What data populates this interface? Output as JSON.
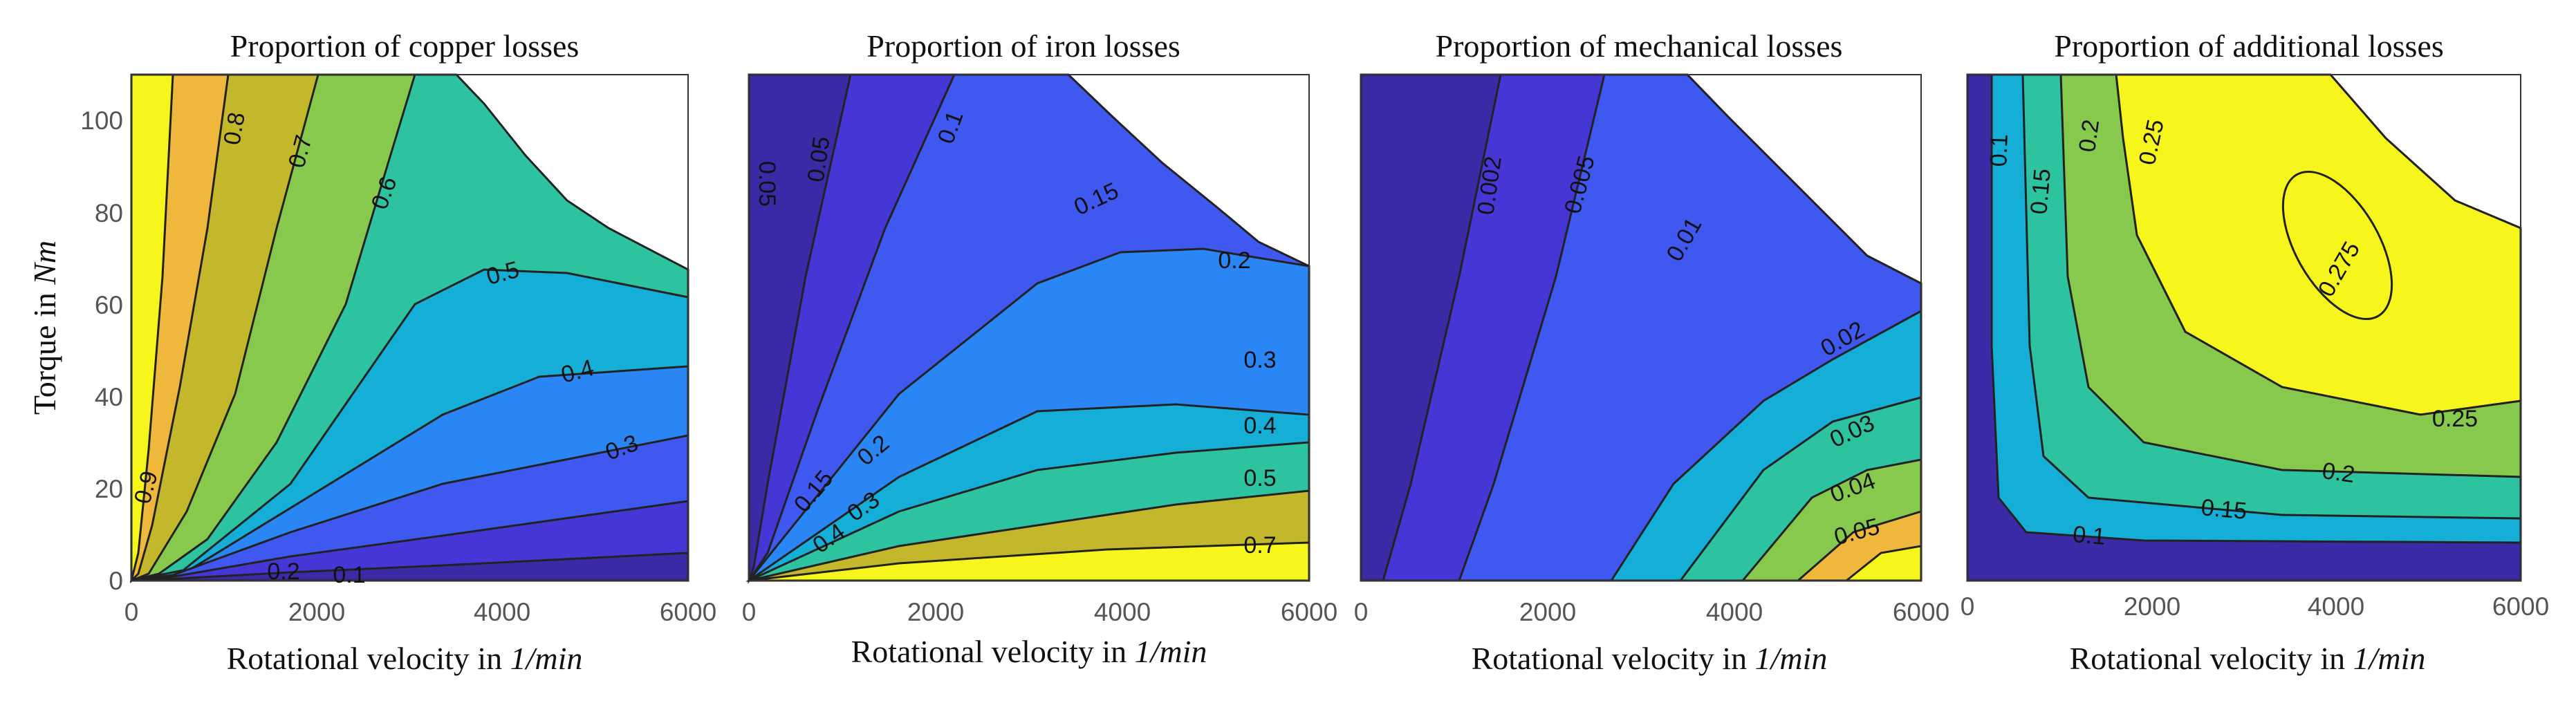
{
  "colors": {
    "dark": "#3b2aa6",
    "indigo": "#4537d6",
    "blue": "#3f58f0",
    "sky": "#2b86f5",
    "cyan": "#14aed6",
    "teal": "#2ec3a0",
    "green": "#86c94c",
    "olive": "#c3b72b",
    "gold": "#efb83c",
    "yellow": "#f6f61d",
    "line": "#222222"
  },
  "chart_data": [
    {
      "type": "contour",
      "title": "Proportion of copper losses",
      "xlabel": "Rotational velocity in ",
      "xlabel_unit": "1/min",
      "ylabel": "Torque in ",
      "ylabel_unit": "Nm",
      "x_ticks": [
        "0",
        "2000",
        "4000",
        "6000"
      ],
      "y_ticks": [
        "0",
        "20",
        "40",
        "60",
        "80",
        "100"
      ],
      "xlim": [
        0,
        6000
      ],
      "ylim": [
        0,
        110
      ],
      "levels": [
        "0.1",
        "0.2",
        "0.3",
        "0.4",
        "0.5",
        "0.6",
        "0.7",
        "0.8",
        "0.9"
      ]
    },
    {
      "type": "contour",
      "title": "Proportion of iron losses",
      "xlabel": "Rotational velocity in ",
      "xlabel_unit": "1/min",
      "x_ticks": [
        "0",
        "2000",
        "4000",
        "6000"
      ],
      "xlim": [
        0,
        6000
      ],
      "ylim": [
        0,
        110
      ],
      "levels": [
        "0.05",
        "0.1",
        "0.15",
        "0.2",
        "0.3",
        "0.4",
        "0.5",
        "0.7"
      ]
    },
    {
      "type": "contour",
      "title": "Proportion of mechanical losses",
      "xlabel": "Rotational velocity in ",
      "xlabel_unit": "1/min",
      "x_ticks": [
        "0",
        "2000",
        "4000",
        "6000"
      ],
      "xlim": [
        0,
        6000
      ],
      "ylim": [
        0,
        110
      ],
      "levels": [
        "0.002",
        "0.005",
        "0.01",
        "0.02",
        "0.03",
        "0.04",
        "0.05"
      ]
    },
    {
      "type": "contour",
      "title": "Proportion of additional losses",
      "xlabel": "Rotational velocity in ",
      "xlabel_unit": "1/min",
      "x_ticks": [
        "0",
        "2000",
        "4000",
        "6000"
      ],
      "xlim": [
        0,
        6000
      ],
      "ylim": [
        0,
        110
      ],
      "levels": [
        "0.1",
        "0.15",
        "0.2",
        "0.25",
        "0.275"
      ]
    }
  ]
}
